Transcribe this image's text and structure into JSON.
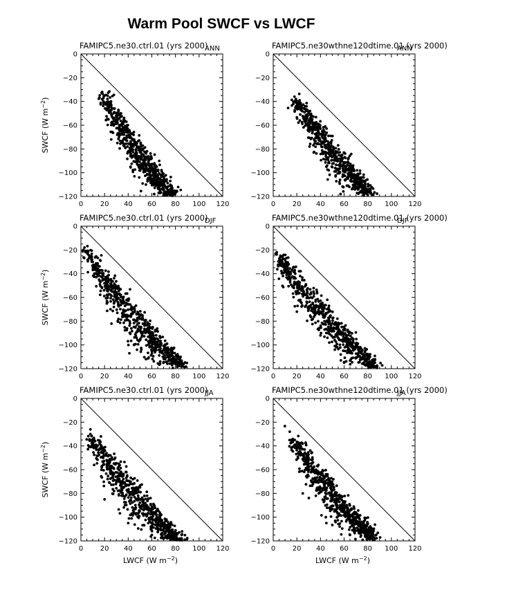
{
  "figure": {
    "title": "Warm Pool SWCF vs LWCF"
  },
  "chart_data": [
    {
      "type": "scatter",
      "title": "FAMIPC5.ne30.ctrl.01 (yrs 2000)",
      "season": "ANN",
      "xlabel": "",
      "ylabel": "SWCF (W m^-2)",
      "ylabel_parts": {
        "base": "SWCF (W m",
        "sup": "−2",
        "tail": ")"
      },
      "xlim": [
        0,
        120
      ],
      "ylim": [
        -120,
        0
      ],
      "xticks": [
        0,
        20,
        40,
        60,
        80,
        100,
        120
      ],
      "yticks": [
        0,
        -20,
        -40,
        -60,
        -80,
        -100,
        -120
      ],
      "reference_line": {
        "from": [
          0,
          0
        ],
        "to": [
          120,
          -120
        ]
      },
      "cloud": {
        "x_start": 18,
        "y_start": -32,
        "x_end": 78,
        "y_end": -118,
        "spread": 22,
        "skew": "below"
      },
      "series": [
        {
          "values": [
            [
              18,
              -32
            ],
            [
              20,
              -35
            ],
            [
              25,
              -42
            ],
            [
              30,
              -50
            ],
            [
              35,
              -58
            ],
            [
              40,
              -65
            ],
            [
              45,
              -72
            ],
            [
              50,
              -80
            ],
            [
              55,
              -88
            ],
            [
              60,
              -97
            ],
            [
              65,
              -104
            ],
            [
              70,
              -110
            ],
            [
              75,
              -115
            ],
            [
              78,
              -117
            ],
            [
              42,
              -95
            ],
            [
              55,
              -110
            ],
            [
              62,
              -118
            ]
          ]
        }
      ]
    },
    {
      "type": "scatter",
      "title": "FAMIPC5.ne30wthne120dtime.01 (yrs 2000)",
      "season": "ANN",
      "xlabel": "",
      "ylabel": "",
      "ylabel_parts": {
        "base": "",
        "sup": "",
        "tail": ""
      },
      "xlim": [
        0,
        120
      ],
      "ylim": [
        -120,
        0
      ],
      "xticks": [
        0,
        20,
        40,
        60,
        80,
        100,
        120
      ],
      "yticks": [
        0,
        -20,
        -40,
        -60,
        -80,
        -100,
        -120
      ],
      "reference_line": {
        "from": [
          0,
          0
        ],
        "to": [
          120,
          -120
        ]
      },
      "cloud": {
        "x_start": 18,
        "y_start": -36,
        "x_end": 82,
        "y_end": -116,
        "spread": 20,
        "skew": "below"
      },
      "series": [
        {
          "values": [
            [
              18,
              -36
            ],
            [
              22,
              -40
            ],
            [
              28,
              -48
            ],
            [
              33,
              -55
            ],
            [
              38,
              -62
            ],
            [
              43,
              -68
            ],
            [
              48,
              -75
            ],
            [
              53,
              -82
            ],
            [
              58,
              -90
            ],
            [
              63,
              -97
            ],
            [
              68,
              -104
            ],
            [
              73,
              -110
            ],
            [
              78,
              -114
            ],
            [
              82,
              -116
            ],
            [
              45,
              -95
            ],
            [
              57,
              -118
            ]
          ]
        }
      ]
    },
    {
      "type": "scatter",
      "title": "FAMIPC5.ne30.ctrl.01 (yrs 2000)",
      "season": "DJF",
      "xlabel": "",
      "ylabel": "SWCF (W m^-2)",
      "ylabel_parts": {
        "base": "SWCF (W m",
        "sup": "−2",
        "tail": ")"
      },
      "xlim": [
        0,
        120
      ],
      "ylim": [
        -120,
        0
      ],
      "xticks": [
        0,
        20,
        40,
        60,
        80,
        100,
        120
      ],
      "yticks": [
        0,
        -20,
        -40,
        -60,
        -80,
        -100,
        -120
      ],
      "reference_line": {
        "from": [
          0,
          0
        ],
        "to": [
          120,
          -120
        ]
      },
      "cloud": {
        "x_start": 3,
        "y_start": -18,
        "x_end": 86,
        "y_end": -118,
        "spread": 24,
        "skew": "below"
      },
      "series": [
        {
          "values": [
            [
              3,
              -18
            ],
            [
              5,
              -22
            ],
            [
              10,
              -30
            ],
            [
              15,
              -38
            ],
            [
              20,
              -45
            ],
            [
              28,
              -55
            ],
            [
              35,
              -63
            ],
            [
              42,
              -70
            ],
            [
              50,
              -78
            ],
            [
              58,
              -86
            ],
            [
              65,
              -95
            ],
            [
              72,
              -104
            ],
            [
              78,
              -110
            ],
            [
              84,
              -116
            ],
            [
              86,
              -118
            ],
            [
              25,
              -70
            ],
            [
              45,
              -100
            ],
            [
              55,
              -112
            ]
          ]
        }
      ]
    },
    {
      "type": "scatter",
      "title": "FAMIPC5.ne30wthne120dtime.01 (yrs 2000)",
      "season": "DJF",
      "xlabel": "",
      "ylabel": "",
      "ylabel_parts": {
        "base": "",
        "sup": "",
        "tail": ""
      },
      "xlim": [
        0,
        120
      ],
      "ylim": [
        -120,
        0
      ],
      "xticks": [
        0,
        20,
        40,
        60,
        80,
        100,
        120
      ],
      "yticks": [
        0,
        -20,
        -40,
        -60,
        -80,
        -100,
        -120
      ],
      "reference_line": {
        "from": [
          0,
          0
        ],
        "to": [
          120,
          -120
        ]
      },
      "cloud": {
        "x_start": 3,
        "y_start": -22,
        "x_end": 86,
        "y_end": -118,
        "spread": 22,
        "skew": "below"
      },
      "series": [
        {
          "values": [
            [
              3,
              -22
            ],
            [
              6,
              -26
            ],
            [
              12,
              -35
            ],
            [
              18,
              -43
            ],
            [
              25,
              -52
            ],
            [
              32,
              -60
            ],
            [
              40,
              -68
            ],
            [
              48,
              -76
            ],
            [
              55,
              -84
            ],
            [
              62,
              -92
            ],
            [
              70,
              -102
            ],
            [
              76,
              -108
            ],
            [
              82,
              -114
            ],
            [
              86,
              -118
            ],
            [
              20,
              -72
            ],
            [
              40,
              -92
            ],
            [
              60,
              -115
            ]
          ]
        }
      ]
    },
    {
      "type": "scatter",
      "title": "FAMIPC5.ne30.ctrl.01 (yrs 2000)",
      "season": "JJA",
      "xlabel": "LWCF (W m^-2)",
      "xlabel_parts": {
        "base": "LWCF (W m",
        "sup": "−2",
        "tail": ")"
      },
      "ylabel": "SWCF (W m^-2)",
      "ylabel_parts": {
        "base": "SWCF (W m",
        "sup": "−2",
        "tail": ")"
      },
      "xlim": [
        0,
        120
      ],
      "ylim": [
        -120,
        0
      ],
      "xticks": [
        0,
        20,
        40,
        60,
        80,
        100,
        120
      ],
      "yticks": [
        0,
        -20,
        -40,
        -60,
        -80,
        -100,
        -120
      ],
      "reference_line": {
        "from": [
          0,
          0
        ],
        "to": [
          120,
          -120
        ]
      },
      "cloud": {
        "x_start": 8,
        "y_start": -30,
        "x_end": 84,
        "y_end": -118,
        "spread": 26,
        "skew": "below"
      },
      "series": [
        {
          "values": [
            [
              8,
              -30
            ],
            [
              12,
              -36
            ],
            [
              18,
              -42
            ],
            [
              25,
              -48
            ],
            [
              32,
              -55
            ],
            [
              38,
              -62
            ],
            [
              44,
              -68
            ],
            [
              50,
              -75
            ],
            [
              56,
              -82
            ],
            [
              62,
              -90
            ],
            [
              68,
              -98
            ],
            [
              74,
              -106
            ],
            [
              80,
              -113
            ],
            [
              84,
              -118
            ],
            [
              20,
              -85
            ],
            [
              40,
              -105
            ],
            [
              60,
              -115
            ]
          ]
        }
      ]
    },
    {
      "type": "scatter",
      "title": "FAMIPC5.ne30wthne120dtime.01 (yrs 2000)",
      "season": "JJA",
      "xlabel": "LWCF (W m^-2)",
      "xlabel_parts": {
        "base": "LWCF (W m",
        "sup": "−2",
        "tail": ")"
      },
      "ylabel": "",
      "ylabel_parts": {
        "base": "",
        "sup": "",
        "tail": ""
      },
      "xlim": [
        0,
        120
      ],
      "ylim": [
        -120,
        0
      ],
      "xticks": [
        0,
        20,
        40,
        60,
        80,
        100,
        120
      ],
      "yticks": [
        0,
        -20,
        -40,
        -60,
        -80,
        -100,
        -120
      ],
      "reference_line": {
        "from": [
          0,
          0
        ],
        "to": [
          120,
          -120
        ]
      },
      "cloud": {
        "x_start": 14,
        "y_start": -28,
        "x_end": 86,
        "y_end": -118,
        "spread": 22,
        "skew": "below"
      },
      "series": [
        {
          "values": [
            [
              14,
              -28
            ],
            [
              16,
              -36
            ],
            [
              20,
              -42
            ],
            [
              26,
              -50
            ],
            [
              32,
              -57
            ],
            [
              38,
              -64
            ],
            [
              44,
              -70
            ],
            [
              50,
              -77
            ],
            [
              56,
              -84
            ],
            [
              62,
              -92
            ],
            [
              68,
              -100
            ],
            [
              74,
              -107
            ],
            [
              80,
              -113
            ],
            [
              86,
              -118
            ],
            [
              25,
              -80
            ],
            [
              45,
              -105
            ],
            [
              65,
              -115
            ]
          ]
        }
      ]
    }
  ]
}
